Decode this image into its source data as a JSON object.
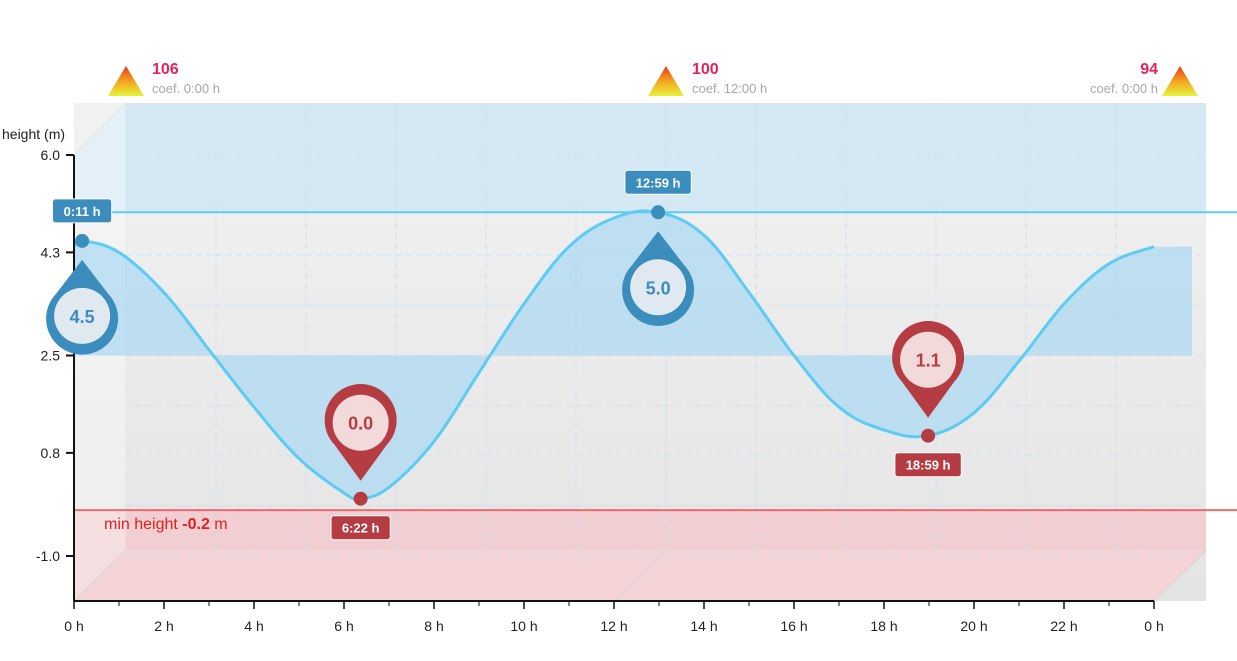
{
  "chart_data": {
    "type": "line",
    "y_axis_title": "height (m)",
    "y_ticks": [
      "6.0",
      "4.3",
      "2.5",
      "0.8",
      "-1.0"
    ],
    "y_tick_values": [
      6.0,
      4.3,
      2.5,
      0.8,
      -1.0
    ],
    "ylim": [
      -1.75,
      6.0
    ],
    "x_ticks": [
      "0 h",
      "2 h",
      "4 h",
      "6 h",
      "8 h",
      "10 h",
      "12 h",
      "14 h",
      "16 h",
      "18 h",
      "20 h",
      "22 h",
      "0 h"
    ],
    "xlim": [
      0,
      24
    ],
    "grid": true,
    "series": [
      {
        "x": [
          0,
          0.18,
          1,
          2,
          3,
          4,
          5,
          6,
          6.37,
          7,
          8,
          9,
          10,
          11,
          12,
          12.98,
          14,
          15,
          16,
          17,
          18,
          18.98,
          20,
          21,
          22,
          23,
          24
        ],
        "values": [
          4.4,
          4.5,
          4.3,
          3.6,
          2.6,
          1.6,
          0.7,
          0.1,
          0.0,
          0.2,
          1.0,
          2.2,
          3.4,
          4.4,
          4.9,
          5.0,
          4.6,
          3.6,
          2.5,
          1.6,
          1.2,
          1.1,
          1.5,
          2.4,
          3.4,
          4.1,
          4.4
        ]
      }
    ],
    "mean_level": 2.5,
    "max_line": 5.0,
    "min_height": {
      "prefix": "min height",
      "value": "-0.2",
      "unit": "m",
      "level": -0.2
    },
    "extremes": [
      {
        "kind": "high",
        "x": 0.18,
        "y": 4.5,
        "label": "4.5",
        "time": "0:11 h"
      },
      {
        "kind": "low",
        "x": 6.37,
        "y": 0.0,
        "label": "0.0",
        "time": "6:22 h"
      },
      {
        "kind": "high",
        "x": 12.98,
        "y": 5.0,
        "label": "5.0",
        "time": "12:59 h"
      },
      {
        "kind": "low",
        "x": 18.98,
        "y": 1.1,
        "label": "1.1",
        "time": "18:59 h"
      }
    ],
    "coefficients": [
      {
        "value": "106",
        "label": "coef. 0:00 h",
        "align": "left"
      },
      {
        "value": "100",
        "label": "coef. 12:00 h",
        "align": "left"
      },
      {
        "value": "94",
        "label": "coef. 0:00 h",
        "align": "right"
      }
    ],
    "colors": {
      "curve": "#5ccbf5",
      "high": "#3a8dbd",
      "low": "#b63c44",
      "min_line": "#f06b6b",
      "coef_value": "#e0245e"
    }
  }
}
